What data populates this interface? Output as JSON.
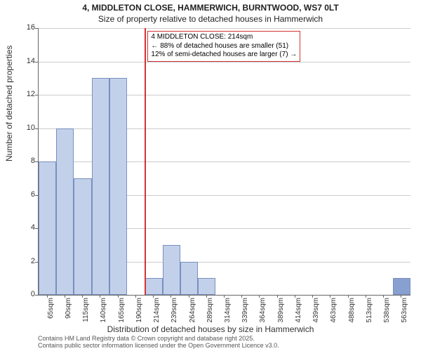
{
  "chart": {
    "type": "histogram",
    "title_line1": "4, MIDDLETON CLOSE, HAMMERWICH, BURNTWOOD, WS7 0LT",
    "title_line2": "Size of property relative to detached houses in Hammerwich",
    "title_fontsize": 12,
    "background_color": "#ffffff",
    "grid_color": "#cccccc",
    "axis_color": "#666666",
    "bar_fill": "#c2d0ea",
    "bar_border": "#7a8fbf",
    "last_bar_fill": "#88a0d0",
    "reference_line_color": "#d43333",
    "reference_value": "214sqm",
    "annotation": {
      "line1": "4 MIDDLETON CLOSE: 214sqm",
      "line2": "← 88% of detached houses are smaller (51)",
      "line3": "12% of semi-detached houses are larger (7) →",
      "border_color": "#d43333"
    },
    "x": {
      "label": "Distribution of detached houses by size in Hammerwich",
      "ticks": [
        "65sqm",
        "90sqm",
        "115sqm",
        "140sqm",
        "165sqm",
        "190sqm",
        "214sqm",
        "239sqm",
        "264sqm",
        "289sqm",
        "314sqm",
        "339sqm",
        "364sqm",
        "389sqm",
        "414sqm",
        "439sqm",
        "463sqm",
        "488sqm",
        "513sqm",
        "538sqm",
        "563sqm"
      ]
    },
    "y": {
      "label": "Number of detached properties",
      "min": 0,
      "max": 16,
      "tick_step": 2,
      "ticks": [
        0,
        2,
        4,
        6,
        8,
        10,
        12,
        14,
        16
      ]
    },
    "bars": [
      {
        "x": "65sqm",
        "value": 8
      },
      {
        "x": "90sqm",
        "value": 10
      },
      {
        "x": "115sqm",
        "value": 7
      },
      {
        "x": "140sqm",
        "value": 13
      },
      {
        "x": "165sqm",
        "value": 13
      },
      {
        "x": "190sqm",
        "value": 0
      },
      {
        "x": "214sqm",
        "value": 1
      },
      {
        "x": "239sqm",
        "value": 3
      },
      {
        "x": "264sqm",
        "value": 2
      },
      {
        "x": "289sqm",
        "value": 1
      },
      {
        "x": "314sqm",
        "value": 0
      },
      {
        "x": "339sqm",
        "value": 0
      },
      {
        "x": "364sqm",
        "value": 0
      },
      {
        "x": "389sqm",
        "value": 0
      },
      {
        "x": "414sqm",
        "value": 0
      },
      {
        "x": "439sqm",
        "value": 0
      },
      {
        "x": "463sqm",
        "value": 0
      },
      {
        "x": "488sqm",
        "value": 0
      },
      {
        "x": "513sqm",
        "value": 0
      },
      {
        "x": "538sqm",
        "value": 0
      },
      {
        "x": "563sqm",
        "value": 1
      }
    ],
    "credit_line1": "Contains HM Land Registry data © Crown copyright and database right 2025.",
    "credit_line2": "Contains public sector information licensed under the Open Government Licence v3.0."
  }
}
